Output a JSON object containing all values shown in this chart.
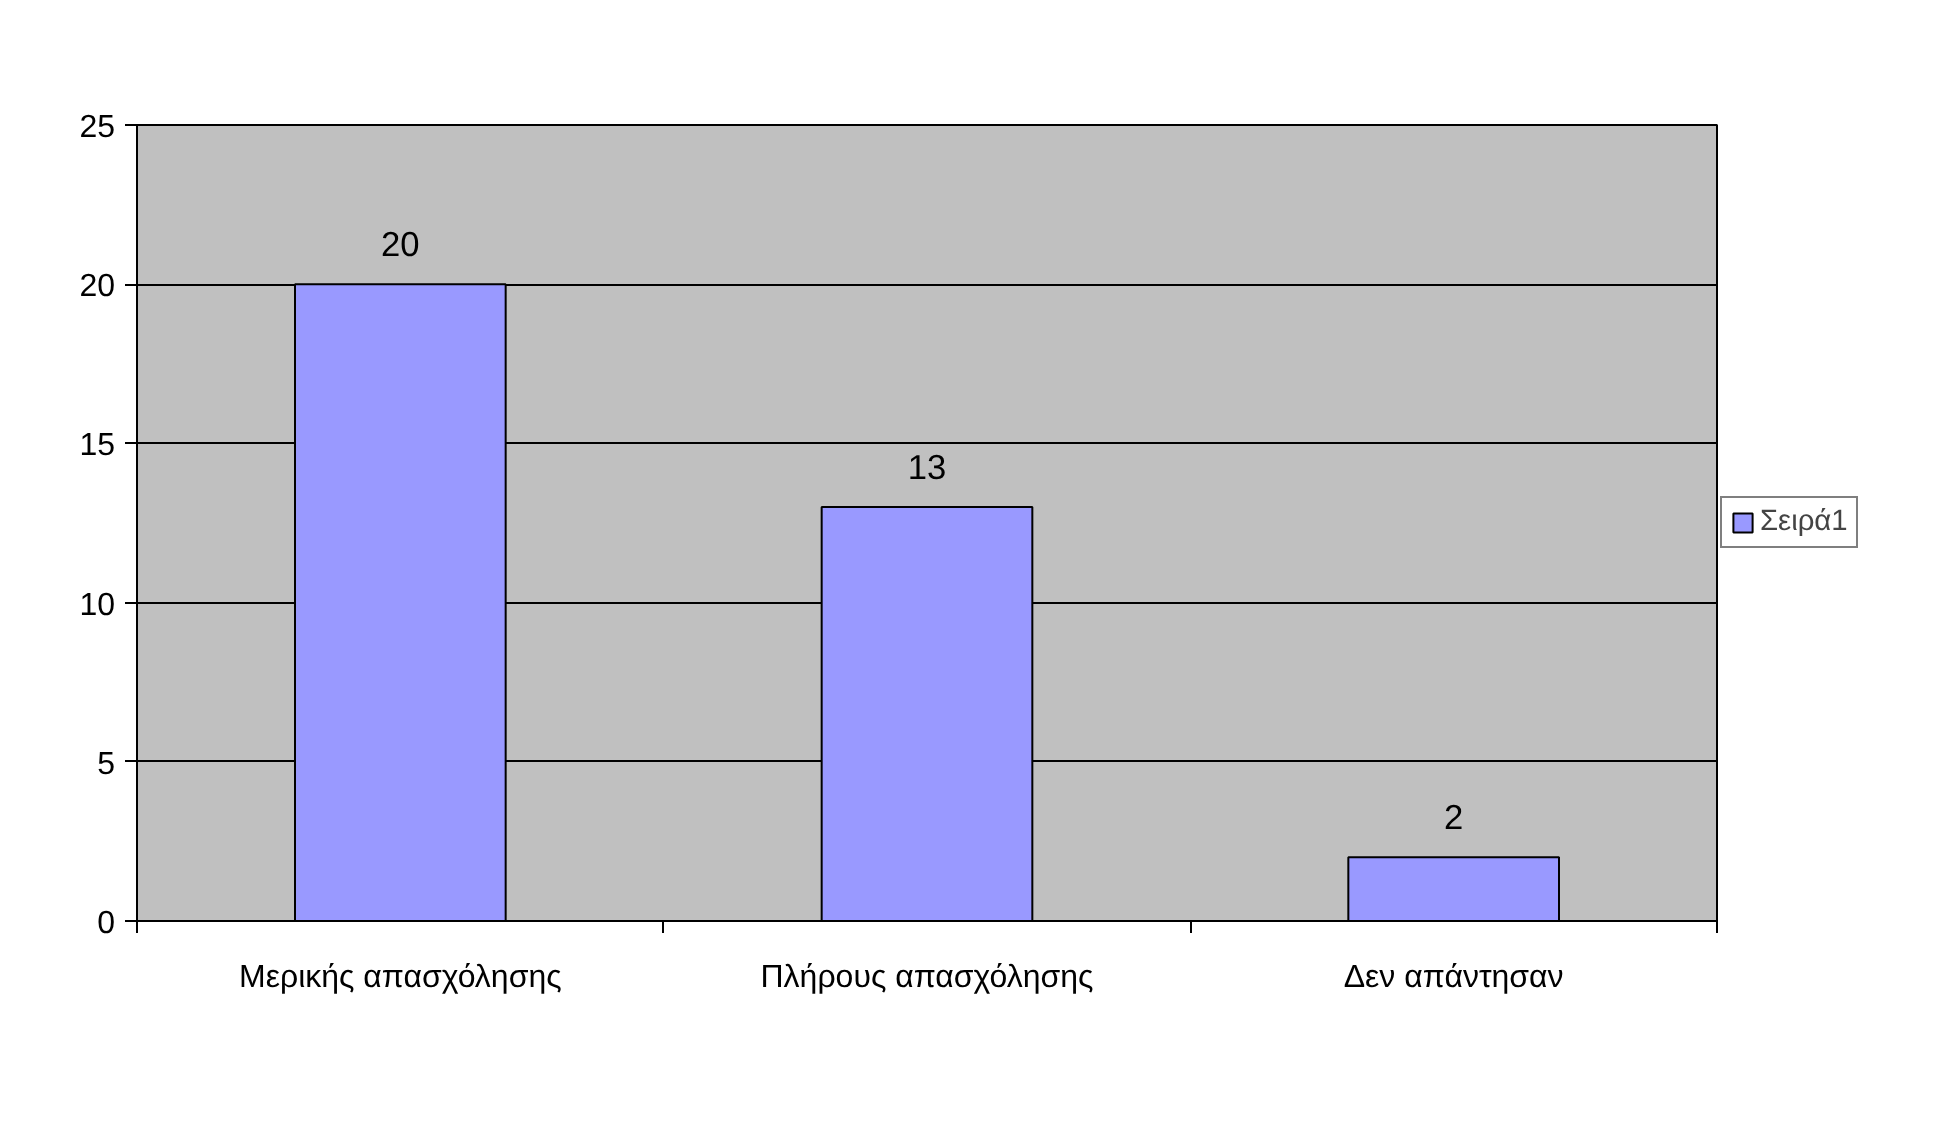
{
  "chart_data": {
    "type": "bar",
    "categories": [
      "Μερικής απασχόλησης",
      "Πλήρους απασχόλησης",
      "Δεν απάντησαν"
    ],
    "series": [
      {
        "name": "Σειρά1",
        "color": "#9999ff",
        "values": [
          20,
          13,
          2
        ]
      }
    ],
    "ylim": [
      0,
      25
    ],
    "yticks": [
      0,
      5,
      10,
      15,
      20,
      25
    ],
    "grid": "y",
    "legend": "right",
    "data_labels": true
  }
}
